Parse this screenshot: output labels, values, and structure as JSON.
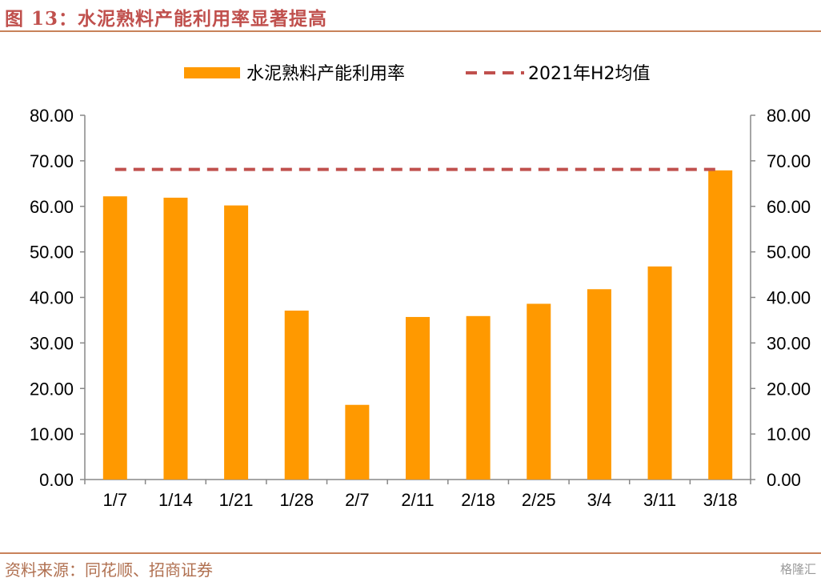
{
  "header": {
    "title": "图 13：水泥熟料产能利用率显著提高"
  },
  "footer": {
    "source": "资料来源：同花顺、招商证券",
    "watermark": "格隆汇"
  },
  "colors": {
    "bar": "#ff9900",
    "line": "#c0504d",
    "accent": "#c0504d"
  },
  "chart_data": {
    "type": "bar",
    "categories": [
      "1/7",
      "1/14",
      "1/21",
      "1/28",
      "2/7",
      "2/11",
      "2/18",
      "2/25",
      "3/4",
      "3/11",
      "3/18"
    ],
    "series": [
      {
        "name": "水泥熟料产能利用率",
        "type": "bar",
        "values": [
          62.2,
          61.9,
          60.2,
          37.1,
          16.4,
          35.7,
          35.9,
          38.6,
          41.8,
          46.8,
          67.9
        ]
      },
      {
        "name": "2021年H2均值",
        "type": "line",
        "style": "dashed",
        "values": [
          68.1,
          68.1,
          68.1,
          68.1,
          68.1,
          68.1,
          68.1,
          68.1,
          68.1,
          68.1,
          68.1
        ]
      }
    ],
    "ylim": [
      0,
      80
    ],
    "yticks": [
      "0.00",
      "10.00",
      "20.00",
      "30.00",
      "40.00",
      "50.00",
      "60.00",
      "70.00",
      "80.00"
    ],
    "y2ticks": [
      "0.00",
      "10.00",
      "20.00",
      "30.00",
      "40.00",
      "50.00",
      "60.00",
      "70.00",
      "80.00"
    ],
    "xlabel": "",
    "ylabel": "",
    "legend": "top-center",
    "grid": false
  }
}
